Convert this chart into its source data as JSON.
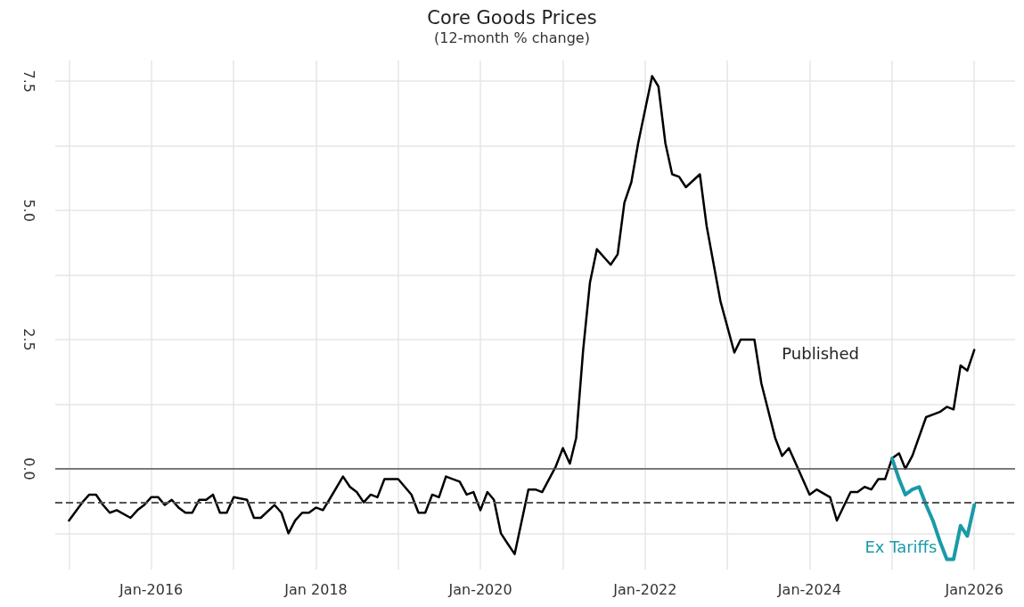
{
  "chart_data": {
    "type": "line",
    "title": "Core Goods Prices",
    "subtitle": "(12-month % change)",
    "x": [
      "2015-01",
      "2015-03",
      "2015-04",
      "2015-05",
      "2015-06",
      "2015-07",
      "2015-08",
      "2015-10",
      "2015-11",
      "2015-12",
      "2016-01",
      "2016-02",
      "2016-03",
      "2016-04",
      "2016-05",
      "2016-06",
      "2016-07",
      "2016-08",
      "2016-09",
      "2016-10",
      "2016-11",
      "2016-12",
      "2017-01",
      "2017-03",
      "2017-04",
      "2017-05",
      "2017-07",
      "2017-08",
      "2017-09",
      "2017-10",
      "2017-11",
      "2017-12",
      "2018-01",
      "2018-02",
      "2018-03",
      "2018-05",
      "2018-06",
      "2018-07",
      "2018-08",
      "2018-09",
      "2018-10",
      "2018-11",
      "2019-01",
      "2019-03",
      "2019-04",
      "2019-05",
      "2019-06",
      "2019-07",
      "2019-08",
      "2019-10",
      "2019-11",
      "2019-12",
      "2020-01",
      "2020-02",
      "2020-03",
      "2020-04",
      "2020-05",
      "2020-06",
      "2020-08",
      "2020-09",
      "2020-10",
      "2020-12",
      "2021-01",
      "2021-02",
      "2021-03",
      "2021-04",
      "2021-05",
      "2021-06",
      "2021-08",
      "2021-09",
      "2021-10",
      "2021-11",
      "2021-12",
      "2022-02",
      "2022-03",
      "2022-04",
      "2022-05",
      "2022-06",
      "2022-07",
      "2022-09",
      "2022-10",
      "2022-12",
      "2023-02",
      "2023-03",
      "2023-05",
      "2023-06",
      "2023-08",
      "2023-09",
      "2023-10",
      "2023-11",
      "2024-01",
      "2024-02",
      "2024-04",
      "2024-05",
      "2024-07",
      "2024-08",
      "2024-09",
      "2024-10",
      "2024-11",
      "2024-12",
      "2025-01",
      "2025-02",
      "2025-03",
      "2025-04",
      "2025-06",
      "2025-07",
      "2025-08",
      "2025-09",
      "2025-10",
      "2025-11",
      "2025-12",
      "2026-01"
    ],
    "series": [
      {
        "name": "Published",
        "color": "#000000",
        "values": [
          -1.0,
          -0.65,
          -0.5,
          -0.5,
          -0.7,
          -0.85,
          -0.8,
          -0.95,
          -0.8,
          -0.7,
          -0.55,
          -0.55,
          -0.7,
          -0.6,
          -0.75,
          -0.85,
          -0.85,
          -0.6,
          -0.6,
          -0.5,
          -0.85,
          -0.85,
          -0.55,
          -0.6,
          -0.95,
          -0.95,
          -0.7,
          -0.85,
          -1.25,
          -1.0,
          -0.85,
          -0.85,
          -0.75,
          -0.8,
          -0.6,
          -0.15,
          -0.35,
          -0.45,
          -0.65,
          -0.5,
          -0.55,
          -0.2,
          -0.2,
          -0.5,
          -0.85,
          -0.85,
          -0.5,
          -0.55,
          -0.15,
          -0.25,
          -0.5,
          -0.45,
          -0.8,
          -0.45,
          -0.6,
          -1.25,
          -1.45,
          -1.65,
          -0.4,
          -0.4,
          -0.45,
          0.05,
          0.4,
          0.1,
          0.6,
          2.3,
          3.6,
          4.25,
          3.95,
          4.15,
          5.15,
          5.55,
          6.3,
          7.6,
          7.4,
          6.3,
          5.7,
          5.65,
          5.45,
          5.7,
          4.7,
          3.25,
          2.25,
          2.5,
          2.5,
          1.65,
          0.6,
          0.25,
          0.4,
          0.1,
          -0.5,
          -0.4,
          -0.55,
          -1.0,
          -0.45,
          -0.45,
          -0.35,
          -0.4,
          -0.2,
          -0.2,
          0.2,
          0.3,
          0.0,
          0.25,
          1.0,
          1.05,
          1.1,
          1.2,
          1.15,
          2.0,
          1.9,
          2.3
        ]
      },
      {
        "name": "Ex Tariffs",
        "color": "#1a9aa8",
        "x": [
          "2025-01",
          "2025-02",
          "2025-03",
          "2025-04",
          "2025-05",
          "2025-06",
          "2025-07",
          "2025-08",
          "2025-09",
          "2025-10",
          "2025-11",
          "2025-12",
          "2026-01"
        ],
        "values": [
          0.2,
          -0.2,
          -0.5,
          -0.4,
          -0.35,
          -0.7,
          -1.0,
          -1.4,
          -1.75,
          -1.75,
          -1.1,
          -1.3,
          -0.7
        ]
      }
    ],
    "xlim": [
      "2014-11",
      "2026-07"
    ],
    "xticks": [
      {
        "value": "2015-01",
        "label": null
      },
      {
        "value": "2016-01",
        "label": "Jan-2016"
      },
      {
        "value": "2017-01",
        "label": null
      },
      {
        "value": "2018-01",
        "label": "Jan 2018"
      },
      {
        "value": "2019-01",
        "label": null
      },
      {
        "value": "2020-01",
        "label": "Jan-2020"
      },
      {
        "value": "2021-01",
        "label": null
      },
      {
        "value": "2022-01",
        "label": "Jan-2022"
      },
      {
        "value": "2023-01",
        "label": null
      },
      {
        "value": "2024-01",
        "label": "Jan-2024"
      },
      {
        "value": "2025-01",
        "label": null
      },
      {
        "value": "2026-01",
        "label": "Jan2026"
      }
    ],
    "ylim": [
      -1.95,
      7.9
    ],
    "yticks": [
      {
        "value": -1.25,
        "label": null
      },
      {
        "value": 0,
        "label": "0.0"
      },
      {
        "value": 1.25,
        "label": null
      },
      {
        "value": 2.5,
        "label": "2.5"
      },
      {
        "value": 3.75,
        "label": null
      },
      {
        "value": 5,
        "label": "5.0"
      },
      {
        "value": 6.25,
        "label": null
      },
      {
        "value": 7.5,
        "label": "7.5"
      }
    ],
    "ref_lines": [
      {
        "axis": "y",
        "value": 0,
        "color": "#555555",
        "line_style": "solid"
      },
      {
        "axis": "y",
        "value": -0.65,
        "color": "#555555",
        "line_style": "dashed"
      }
    ],
    "grid": true,
    "legend": false,
    "marker": "none",
    "line_style": "solid"
  }
}
